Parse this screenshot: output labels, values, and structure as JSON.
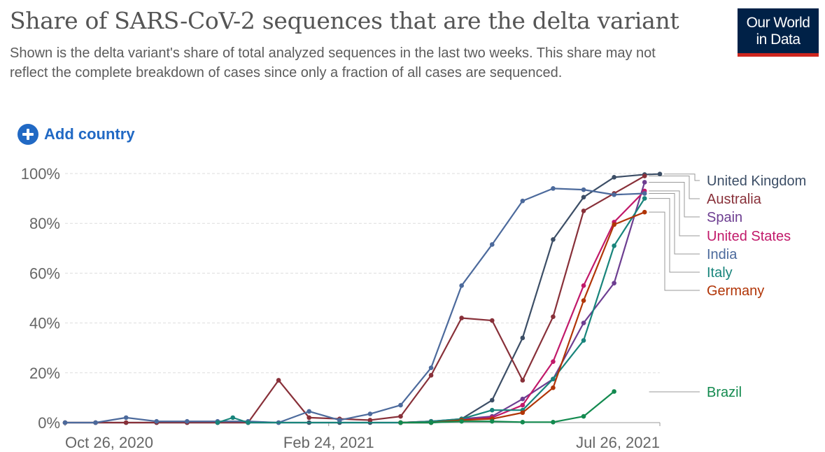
{
  "header": {
    "title": "Share of SARS-CoV-2 sequences that are the delta variant",
    "subtitle": "Shown is the delta variant's share of total analyzed sequences in the last two weeks. This share may not reflect the complete breakdown of cases since only a fraction of all cases are sequenced."
  },
  "logo": {
    "line1": "Our World",
    "line2": "in Data"
  },
  "controls": {
    "add_country_label": "Add country",
    "add_icon": "plus-circle-icon"
  },
  "colors": {
    "grid": "#dddddd",
    "axis": "#999999",
    "tick_text": "#666666",
    "link_blue": "#2169c4",
    "logo_bg": "#002147",
    "logo_accent": "#ce261e"
  },
  "chart_data": {
    "type": "line",
    "title": "Share of SARS-CoV-2 sequences that are the delta variant",
    "xlabel": "",
    "ylabel": "",
    "x_ticks": [
      "Oct 26, 2020",
      "Feb 24, 2021",
      "Jul 26, 2021"
    ],
    "y_ticks": [
      "0%",
      "20%",
      "40%",
      "60%",
      "80%",
      "100%"
    ],
    "ylim": [
      0,
      100
    ],
    "xlim": [
      "2020-10-26",
      "2021-07-26"
    ],
    "grid": "horizontal dashed",
    "legend": "right, end-of-line labels",
    "series": [
      {
        "name": "United Kingdom",
        "color": "#3c4e66",
        "points": [
          [
            "2020-10-26",
            0
          ],
          [
            "2020-11-09",
            0
          ],
          [
            "2020-11-23",
            0
          ],
          [
            "2020-12-07",
            0
          ],
          [
            "2020-12-21",
            0
          ],
          [
            "2021-01-04",
            0
          ],
          [
            "2021-01-18",
            0
          ],
          [
            "2021-02-01",
            0
          ],
          [
            "2021-02-15",
            0
          ],
          [
            "2021-03-01",
            0
          ],
          [
            "2021-03-15",
            0
          ],
          [
            "2021-03-29",
            0
          ],
          [
            "2021-04-12",
            0
          ],
          [
            "2021-04-26",
            1.5
          ],
          [
            "2021-05-10",
            9
          ],
          [
            "2021-05-24",
            34
          ],
          [
            "2021-06-07",
            73.5
          ],
          [
            "2021-06-21",
            90.5
          ],
          [
            "2021-07-05",
            98.5
          ],
          [
            "2021-07-19",
            99.6
          ],
          [
            "2021-07-26",
            99.8
          ]
        ]
      },
      {
        "name": "Australia",
        "color": "#883039",
        "points": [
          [
            "2020-10-26",
            0
          ],
          [
            "2020-11-09",
            0
          ],
          [
            "2020-11-23",
            0
          ],
          [
            "2020-12-07",
            0
          ],
          [
            "2020-12-21",
            0
          ],
          [
            "2021-01-04",
            0
          ],
          [
            "2021-01-18",
            0
          ],
          [
            "2021-02-01",
            17
          ],
          [
            "2021-02-15",
            2
          ],
          [
            "2021-03-01",
            1.5
          ],
          [
            "2021-03-15",
            1
          ],
          [
            "2021-03-29",
            2.5
          ],
          [
            "2021-04-12",
            19
          ],
          [
            "2021-04-26",
            42
          ],
          [
            "2021-05-10",
            41
          ],
          [
            "2021-05-24",
            17
          ],
          [
            "2021-06-07",
            42.5
          ],
          [
            "2021-06-21",
            85
          ],
          [
            "2021-07-05",
            92
          ],
          [
            "2021-07-19",
            99
          ]
        ]
      },
      {
        "name": "Spain",
        "color": "#6d3e91",
        "points": [
          [
            "2021-03-29",
            0
          ],
          [
            "2021-04-12",
            0.5
          ],
          [
            "2021-04-26",
            1.5
          ],
          [
            "2021-05-10",
            2.5
          ],
          [
            "2021-05-24",
            9.5
          ],
          [
            "2021-06-07",
            17.5
          ],
          [
            "2021-06-21",
            40
          ],
          [
            "2021-07-05",
            56
          ],
          [
            "2021-07-19",
            96.5
          ]
        ]
      },
      {
        "name": "United States",
        "color": "#c1196a",
        "points": [
          [
            "2021-03-29",
            0
          ],
          [
            "2021-04-12",
            0.5
          ],
          [
            "2021-04-26",
            1
          ],
          [
            "2021-05-10",
            2
          ],
          [
            "2021-05-24",
            7
          ],
          [
            "2021-06-07",
            24.5
          ],
          [
            "2021-06-21",
            55
          ],
          [
            "2021-07-05",
            80.5
          ],
          [
            "2021-07-19",
            93
          ]
        ]
      },
      {
        "name": "India",
        "color": "#4c6a9c",
        "points": [
          [
            "2020-10-26",
            0
          ],
          [
            "2020-11-09",
            0
          ],
          [
            "2020-11-23",
            2
          ],
          [
            "2020-12-07",
            0.5
          ],
          [
            "2020-12-21",
            0.5
          ],
          [
            "2021-01-04",
            0.5
          ],
          [
            "2021-01-18",
            0.5
          ],
          [
            "2021-02-01",
            0
          ],
          [
            "2021-02-15",
            4.5
          ],
          [
            "2021-03-01",
            1
          ],
          [
            "2021-03-15",
            3.5
          ],
          [
            "2021-03-29",
            7
          ],
          [
            "2021-04-12",
            22
          ],
          [
            "2021-04-26",
            55
          ],
          [
            "2021-05-10",
            71.5
          ],
          [
            "2021-05-24",
            89
          ],
          [
            "2021-06-07",
            94
          ],
          [
            "2021-06-21",
            93.5
          ],
          [
            "2021-07-05",
            91.5
          ],
          [
            "2021-07-19",
            92
          ]
        ]
      },
      {
        "name": "Italy",
        "color": "#18847b",
        "points": [
          [
            "2021-01-04",
            0
          ],
          [
            "2021-01-11",
            2
          ],
          [
            "2021-01-18",
            0
          ],
          [
            "2021-03-29",
            0
          ],
          [
            "2021-04-12",
            0.5
          ],
          [
            "2021-04-26",
            1.5
          ],
          [
            "2021-05-10",
            5
          ],
          [
            "2021-05-24",
            5
          ],
          [
            "2021-06-07",
            17.5
          ],
          [
            "2021-06-21",
            33
          ],
          [
            "2021-07-05",
            71
          ],
          [
            "2021-07-19",
            90
          ]
        ]
      },
      {
        "name": "Germany",
        "color": "#b13507",
        "points": [
          [
            "2021-03-29",
            0
          ],
          [
            "2021-04-12",
            0
          ],
          [
            "2021-04-26",
            1
          ],
          [
            "2021-05-10",
            1.5
          ],
          [
            "2021-05-24",
            4
          ],
          [
            "2021-06-07",
            14
          ],
          [
            "2021-06-21",
            49
          ],
          [
            "2021-07-05",
            79.5
          ],
          [
            "2021-07-19",
            84.5
          ]
        ]
      },
      {
        "name": "Brazil",
        "color": "#138a4f",
        "points": [
          [
            "2021-03-29",
            0
          ],
          [
            "2021-04-12",
            0
          ],
          [
            "2021-04-26",
            0.5
          ],
          [
            "2021-05-10",
            0.5
          ],
          [
            "2021-05-24",
            0.2
          ],
          [
            "2021-06-07",
            0.2
          ],
          [
            "2021-06-21",
            2.5
          ],
          [
            "2021-07-05",
            12.5
          ]
        ]
      }
    ]
  }
}
